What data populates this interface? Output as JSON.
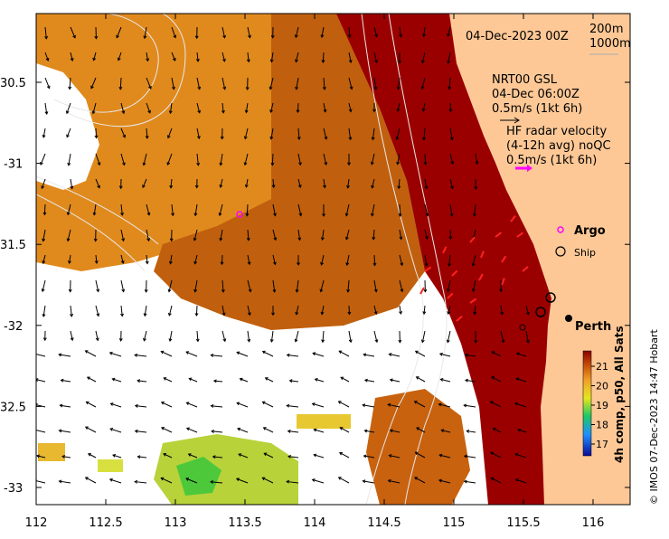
{
  "map": {
    "date_label": "04-Dec-2023 00Z",
    "iso_labels": [
      "200m",
      "1000m"
    ],
    "nrt_title": "NRT00 GSL",
    "nrt_time": "04-Dec 06:00Z",
    "nrt_scale": "0.5m/s (1kt 6h)",
    "hf_title": "HF radar velocity",
    "hf_sub": "(4-12h avg) noQC",
    "hf_scale": "0.5m/s (1kt 6h)",
    "argo_label": "Argo",
    "ship_label": "Ship",
    "city_label": "Perth",
    "credit": "© IMOS 07-Dec-2023 14:47 Hobart",
    "colorbar_title": "4h comp, p50, All Sats",
    "colorbar_ticks": [
      "21",
      "20",
      "19",
      "18",
      "17"
    ],
    "lon_ticks": [
      "112",
      "112.5",
      "113",
      "113.5",
      "114",
      "114.5",
      "115",
      "115.5",
      "116"
    ],
    "lat_ticks": [
      "30.5",
      "-31",
      "31.5",
      "-32",
      "32.5",
      "-33"
    ],
    "colors": {
      "land": "#fdc896",
      "hot": "#9b0000",
      "warm": "#c45a0e",
      "argo": "#ff00ff",
      "hf": "#ff2222"
    }
  }
}
